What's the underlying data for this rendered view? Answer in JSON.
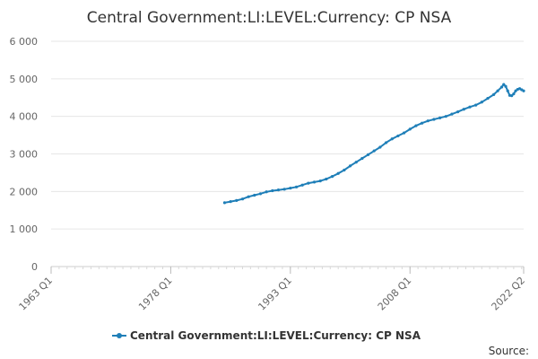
{
  "chart_data": {
    "type": "line",
    "title": "Central Government:LI:LEVEL:Currency: CP NSA",
    "xlabel": "",
    "ylabel": "",
    "x_tick_labels": [
      "1963 Q1",
      "1978 Q1",
      "1993 Q1",
      "2008 Q1",
      "2022 Q2"
    ],
    "x_tick_positions": [
      1963.0,
      1978.0,
      1993.0,
      2008.0,
      2022.25
    ],
    "x_range": [
      1963.0,
      2022.25
    ],
    "y_tick_labels": [
      "0",
      "1 000",
      "2 000",
      "3 000",
      "4 000",
      "5 000",
      "6 000"
    ],
    "y_ticks": [
      0,
      1000,
      2000,
      3000,
      4000,
      5000,
      6000
    ],
    "ylim": [
      0,
      6000
    ],
    "grid": true,
    "legend_position": "bottom-center",
    "series": [
      {
        "name": "Central Government:LI:LEVEL:Currency: CP NSA",
        "color": "#1f7fb8",
        "points": [
          [
            1984.75,
            1700
          ],
          [
            1985.5,
            1730
          ],
          [
            1986.25,
            1760
          ],
          [
            1987.0,
            1800
          ],
          [
            1987.75,
            1860
          ],
          [
            1988.5,
            1900
          ],
          [
            1989.25,
            1940
          ],
          [
            1990.0,
            1990
          ],
          [
            1990.75,
            2020
          ],
          [
            1991.5,
            2040
          ],
          [
            1992.25,
            2060
          ],
          [
            1993.0,
            2090
          ],
          [
            1993.75,
            2120
          ],
          [
            1994.5,
            2170
          ],
          [
            1995.25,
            2220
          ],
          [
            1996.0,
            2250
          ],
          [
            1996.75,
            2280
          ],
          [
            1997.5,
            2330
          ],
          [
            1998.25,
            2400
          ],
          [
            1999.0,
            2480
          ],
          [
            1999.75,
            2570
          ],
          [
            2000.5,
            2680
          ],
          [
            2001.25,
            2780
          ],
          [
            2002.0,
            2880
          ],
          [
            2002.75,
            2980
          ],
          [
            2003.5,
            3080
          ],
          [
            2004.25,
            3180
          ],
          [
            2005.0,
            3300
          ],
          [
            2005.75,
            3400
          ],
          [
            2006.5,
            3480
          ],
          [
            2007.25,
            3560
          ],
          [
            2008.0,
            3660
          ],
          [
            2008.75,
            3750
          ],
          [
            2009.5,
            3820
          ],
          [
            2010.25,
            3880
          ],
          [
            2011.0,
            3920
          ],
          [
            2011.75,
            3960
          ],
          [
            2012.5,
            4000
          ],
          [
            2013.25,
            4060
          ],
          [
            2014.0,
            4120
          ],
          [
            2014.75,
            4190
          ],
          [
            2015.5,
            4250
          ],
          [
            2016.25,
            4300
          ],
          [
            2017.0,
            4380
          ],
          [
            2017.75,
            4480
          ],
          [
            2018.5,
            4580
          ],
          [
            2019.0,
            4680
          ],
          [
            2019.5,
            4780
          ],
          [
            2019.75,
            4850
          ],
          [
            2020.0,
            4800
          ],
          [
            2020.25,
            4680
          ],
          [
            2020.5,
            4560
          ],
          [
            2020.75,
            4550
          ],
          [
            2021.0,
            4600
          ],
          [
            2021.25,
            4680
          ],
          [
            2021.5,
            4720
          ],
          [
            2021.75,
            4740
          ],
          [
            2022.0,
            4710
          ],
          [
            2022.25,
            4680
          ]
        ]
      }
    ]
  },
  "credits": "Source:"
}
